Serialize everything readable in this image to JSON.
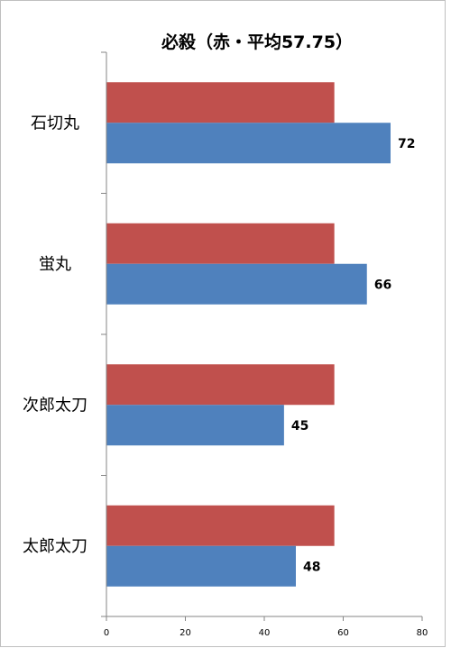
{
  "chart_data": {
    "type": "bar",
    "orientation": "horizontal",
    "title": "必殺（赤・平均57.75）",
    "categories": [
      "石切丸",
      "蛍丸",
      "次郎太刀",
      "太郎太刀"
    ],
    "series": [
      {
        "color": "#c0504d",
        "values": [
          57.75,
          57.75,
          57.75,
          57.75
        ],
        "show_labels": false
      },
      {
        "color": "#4f81bd",
        "values": [
          72,
          66,
          45,
          48
        ],
        "show_labels": true
      }
    ],
    "xlim": [
      0,
      80
    ],
    "x_ticks": [
      "0",
      "20",
      "40",
      "60",
      "80"
    ],
    "grid": false,
    "legend": "none"
  }
}
